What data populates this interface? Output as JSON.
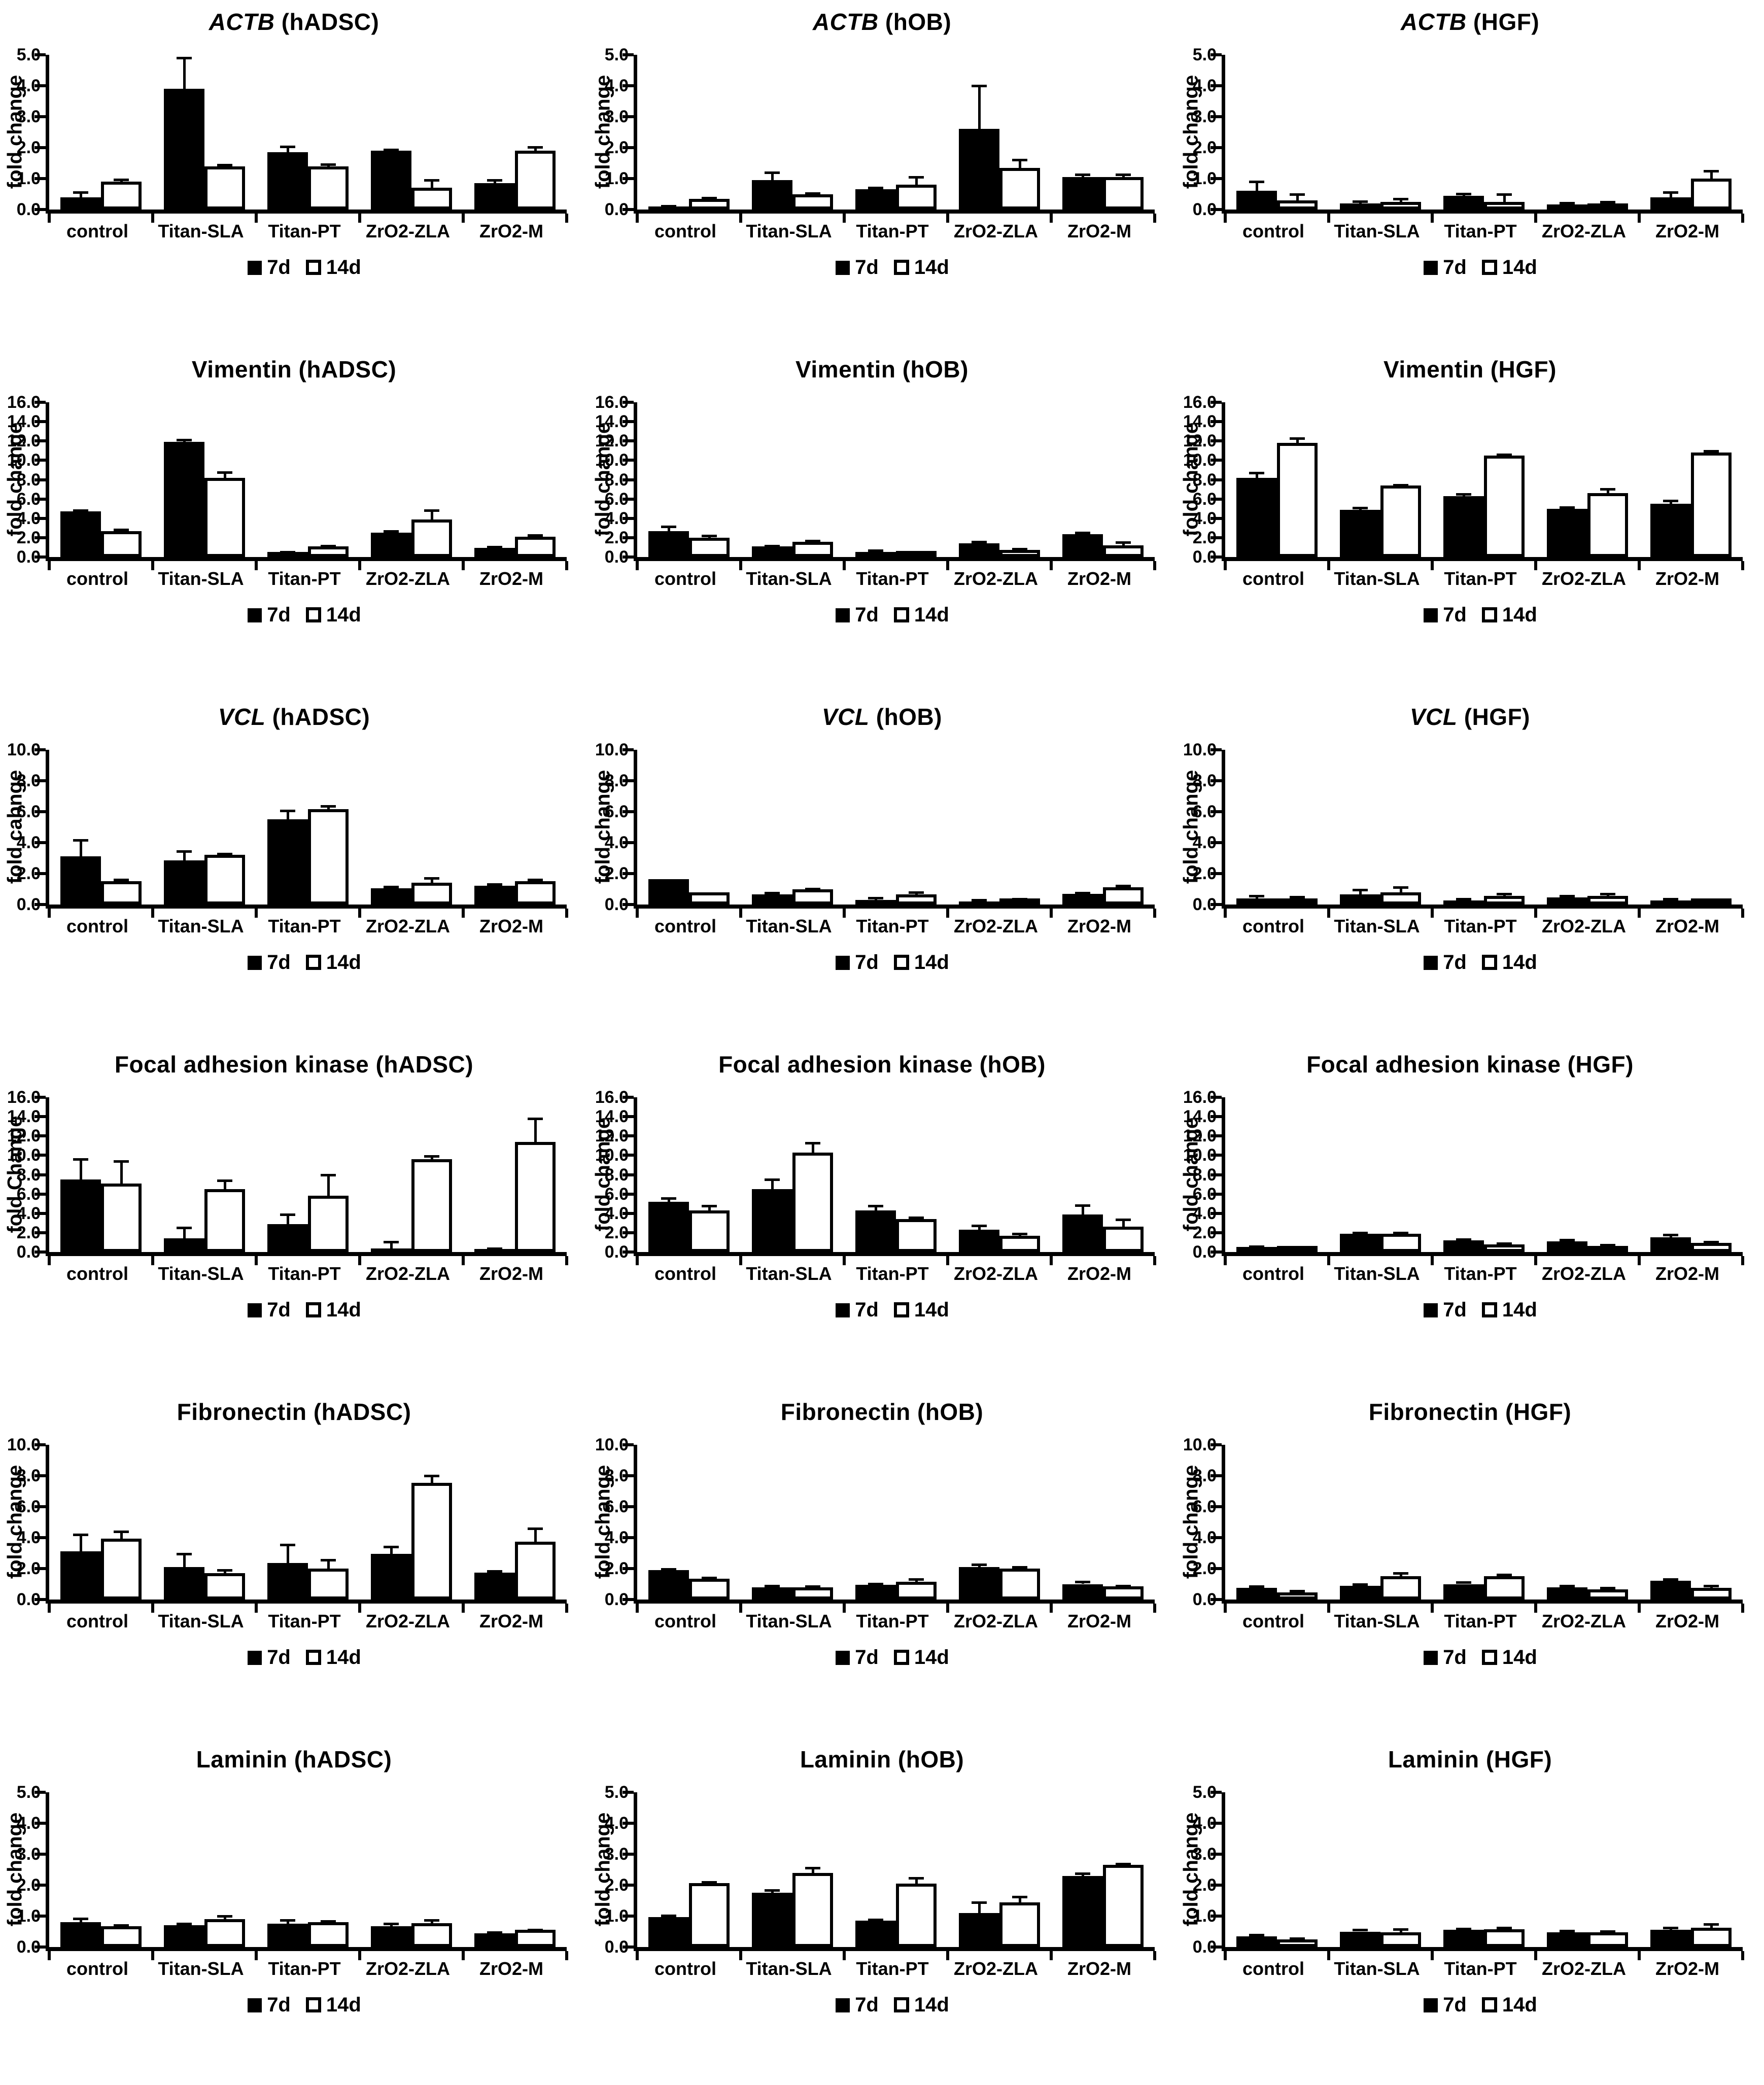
{
  "figure": {
    "background_color": "#ffffff",
    "ink_color": "#000000",
    "legend_labels": [
      "7d",
      "14d"
    ]
  },
  "chart_data": [
    {
      "type": "bar",
      "title": "ACTB (hADSC)",
      "title_gene": "ACTB",
      "title_italic": true,
      "title_suffix": " (hADSC)",
      "ylabel": "fold change",
      "ylim": [
        0,
        5.0
      ],
      "ytick_step": 1.0,
      "grid": false,
      "legend_position": "bottom",
      "categories": [
        "control",
        "Titan-SLA",
        "Titan-PT",
        "ZrO2-ZLA",
        "ZrO2-M"
      ],
      "series": [
        {
          "name": "7d",
          "values": [
            0.4,
            3.9,
            1.85,
            1.9,
            0.85
          ],
          "errors": [
            0.15,
            1.0,
            0.18,
            0.03,
            0.1
          ]
        },
        {
          "name": "14d",
          "values": [
            0.9,
            1.4,
            1.4,
            0.7,
            1.9
          ],
          "errors": [
            0.06,
            0.05,
            0.06,
            0.25,
            0.12
          ]
        }
      ]
    },
    {
      "type": "bar",
      "title": "ACTB (hOB)",
      "title_gene": "ACTB",
      "title_italic": true,
      "title_suffix": " (hOB)",
      "ylabel": "fold change",
      "ylim": [
        0,
        5.0
      ],
      "ytick_step": 1.0,
      "grid": false,
      "legend_position": "bottom",
      "categories": [
        "control",
        "Titan-SLA",
        "Titan-PT",
        "ZrO2-ZLA",
        "ZrO2-M"
      ],
      "series": [
        {
          "name": "7d",
          "values": [
            0.1,
            0.95,
            0.65,
            2.6,
            1.05
          ],
          "errors": [
            0.02,
            0.25,
            0.05,
            1.4,
            0.08
          ]
        },
        {
          "name": "14d",
          "values": [
            0.35,
            0.5,
            0.8,
            1.35,
            1.05
          ],
          "errors": [
            0.02,
            0.03,
            0.25,
            0.25,
            0.08
          ]
        }
      ]
    },
    {
      "type": "bar",
      "title": "ACTB (HGF)",
      "title_gene": "ACTB",
      "title_italic": true,
      "title_suffix": " (HGF)",
      "ylabel": "fold change",
      "ylim": [
        0,
        5.0
      ],
      "ytick_step": 1.0,
      "grid": false,
      "legend_position": "bottom",
      "categories": [
        "control",
        "Titan-SLA",
        "Titan-PT",
        "ZrO2-ZLA",
        "ZrO2-M"
      ],
      "series": [
        {
          "name": "7d",
          "values": [
            0.6,
            0.2,
            0.45,
            0.17,
            0.4
          ],
          "errors": [
            0.3,
            0.06,
            0.06,
            0.05,
            0.15
          ]
        },
        {
          "name": "14d",
          "values": [
            0.3,
            0.25,
            0.25,
            0.2,
            1.0
          ],
          "errors": [
            0.2,
            0.1,
            0.25,
            0.04,
            0.25
          ]
        }
      ]
    },
    {
      "type": "bar",
      "title": "Vimentin (hADSC)",
      "title_gene": "Vimentin",
      "title_italic": false,
      "title_suffix": " (hADSC)",
      "ylabel": "fold change",
      "ylim": [
        0,
        16.0
      ],
      "ytick_step": 2.0,
      "grid": false,
      "legend_position": "bottom",
      "categories": [
        "control",
        "Titan-SLA",
        "Titan-PT",
        "ZrO2-ZLA",
        "ZrO2-M"
      ],
      "series": [
        {
          "name": "7d",
          "values": [
            4.7,
            11.9,
            0.5,
            2.5,
            0.95
          ],
          "errors": [
            0.15,
            0.2,
            0.05,
            0.2,
            0.1
          ]
        },
        {
          "name": "14d",
          "values": [
            2.7,
            8.2,
            1.1,
            3.9,
            2.1
          ],
          "errors": [
            0.15,
            0.55,
            0.05,
            0.95,
            0.15
          ]
        }
      ]
    },
    {
      "type": "bar",
      "title": "Vimentin (hOB)",
      "title_gene": "Vimentin",
      "title_italic": false,
      "title_suffix": " (hOB)",
      "ylabel": "fold change",
      "ylim": [
        0,
        16.0
      ],
      "ytick_step": 2.0,
      "grid": false,
      "legend_position": "bottom",
      "categories": [
        "control",
        "Titan-SLA",
        "Titan-PT",
        "ZrO2-ZLA",
        "ZrO2-M"
      ],
      "series": [
        {
          "name": "7d",
          "values": [
            2.7,
            1.1,
            0.55,
            1.4,
            2.35
          ],
          "errors": [
            0.45,
            0.05,
            0.15,
            0.2,
            0.15
          ]
        },
        {
          "name": "14d",
          "values": [
            2.0,
            1.6,
            0.4,
            0.75,
            1.2
          ],
          "errors": [
            0.2,
            0.1,
            0.05,
            0.1,
            0.3
          ]
        }
      ]
    },
    {
      "type": "bar",
      "title": "Vimentin (HGF)",
      "title_gene": "Vimentin",
      "title_italic": false,
      "title_suffix": " (HGF)",
      "ylabel": "fold change",
      "ylim": [
        0,
        16.0
      ],
      "ytick_step": 2.0,
      "grid": false,
      "legend_position": "bottom",
      "categories": [
        "control",
        "Titan-SLA",
        "Titan-PT",
        "ZrO2-ZLA",
        "ZrO2-M"
      ],
      "series": [
        {
          "name": "7d",
          "values": [
            8.2,
            4.9,
            6.3,
            5.0,
            5.5
          ],
          "errors": [
            0.5,
            0.2,
            0.2,
            0.15,
            0.3
          ]
        },
        {
          "name": "14d",
          "values": [
            11.8,
            7.4,
            10.5,
            6.6,
            10.8
          ],
          "errors": [
            0.45,
            0.05,
            0.1,
            0.45,
            0.15
          ]
        }
      ]
    },
    {
      "type": "bar",
      "title": "VCL (hADSC)",
      "title_gene": "VCL",
      "title_italic": true,
      "title_suffix": " (hADSC)",
      "ylabel": "fold cahnge",
      "ylim": [
        0,
        10.0
      ],
      "ytick_step": 2.0,
      "grid": false,
      "legend_position": "bottom",
      "categories": [
        "control",
        "Titan-SLA",
        "Titan-PT",
        "ZrO2-ZLA",
        "ZrO2-M"
      ],
      "series": [
        {
          "name": "7d",
          "values": [
            3.1,
            2.85,
            5.5,
            1.05,
            1.2
          ],
          "errors": [
            1.05,
            0.6,
            0.55,
            0.1,
            0.1
          ]
        },
        {
          "name": "14d",
          "values": [
            1.5,
            3.2,
            6.15,
            1.4,
            1.5
          ],
          "errors": [
            0.12,
            0.08,
            0.2,
            0.3,
            0.1
          ]
        }
      ]
    },
    {
      "type": "bar",
      "title": "VCL (hOB)",
      "title_gene": "VCL",
      "title_italic": true,
      "title_suffix": " (hOB)",
      "ylabel": "fold change",
      "ylim": [
        0,
        10.0
      ],
      "ytick_step": 2.0,
      "grid": false,
      "legend_position": "bottom",
      "categories": [
        "control",
        "Titan-SLA",
        "Titan-PT",
        "ZrO2-ZLA",
        "ZrO2-M"
      ],
      "series": [
        {
          "name": "7d",
          "values": [
            1.65,
            0.65,
            0.3,
            0.2,
            0.7
          ],
          "errors": [
            0,
            0.12,
            0.12,
            0.1,
            0.06
          ]
        },
        {
          "name": "14d",
          "values": [
            0.8,
            1.0,
            0.65,
            0.3,
            1.1
          ],
          "errors": [
            0,
            0.02,
            0.15,
            0.05,
            0.1
          ]
        }
      ]
    },
    {
      "type": "bar",
      "title": "VCL (HGF)",
      "title_gene": "VCL",
      "title_italic": true,
      "title_suffix": " (HGF)",
      "ylabel": "fold change",
      "ylim": [
        0,
        10.0
      ],
      "ytick_step": 2.0,
      "grid": false,
      "legend_position": "bottom",
      "categories": [
        "control",
        "Titan-SLA",
        "Titan-PT",
        "ZrO2-ZLA",
        "ZrO2-M"
      ],
      "series": [
        {
          "name": "7d",
          "values": [
            0.4,
            0.65,
            0.25,
            0.45,
            0.25
          ],
          "errors": [
            0.15,
            0.3,
            0.1,
            0.1,
            0.1
          ]
        },
        {
          "name": "14d",
          "values": [
            0.4,
            0.8,
            0.55,
            0.55,
            0.05
          ],
          "errors": [
            0.1,
            0.3,
            0.15,
            0.15,
            0.02
          ]
        }
      ]
    },
    {
      "type": "bar",
      "title": "Focal adhesion kinase (hADSC)",
      "title_gene": "Focal adhesion kinase",
      "title_italic": false,
      "title_suffix": " (hADSC)",
      "ylabel": "fold Change",
      "ylim": [
        0,
        16.0
      ],
      "ytick_step": 2.0,
      "grid": false,
      "legend_position": "bottom",
      "categories": [
        "control",
        "Titan-SLA",
        "Titan-PT",
        "ZrO2-ZLA",
        "ZrO2-M"
      ],
      "series": [
        {
          "name": "7d",
          "values": [
            7.5,
            1.4,
            2.9,
            0.35,
            0.3
          ],
          "errors": [
            2.1,
            1.1,
            1.0,
            0.7,
            0.05
          ]
        },
        {
          "name": "14d",
          "values": [
            7.1,
            6.5,
            5.8,
            9.6,
            11.4
          ],
          "errors": [
            2.3,
            0.9,
            2.2,
            0.3,
            2.4
          ]
        }
      ]
    },
    {
      "type": "bar",
      "title": "Focal adhesion kinase (hOB)",
      "title_gene": "Focal adhesion kinase",
      "title_italic": false,
      "title_suffix": " (hOB)",
      "ylabel": "fold change",
      "ylim": [
        0,
        16.0
      ],
      "ytick_step": 2.0,
      "grid": false,
      "legend_position": "bottom",
      "categories": [
        "control",
        "Titan-SLA",
        "Titan-PT",
        "ZrO2-ZLA",
        "ZrO2-M"
      ],
      "series": [
        {
          "name": "7d",
          "values": [
            5.2,
            6.5,
            4.3,
            2.3,
            3.9
          ],
          "errors": [
            0.35,
            1.0,
            0.5,
            0.45,
            0.95
          ]
        },
        {
          "name": "14d",
          "values": [
            4.3,
            10.3,
            3.4,
            1.7,
            2.6
          ],
          "errors": [
            0.45,
            1.0,
            0.15,
            0.2,
            0.75
          ]
        }
      ]
    },
    {
      "type": "bar",
      "title": "Focal adhesion kinase (HGF)",
      "title_gene": "Focal adhesion kinase",
      "title_italic": false,
      "title_suffix": " (HGF)",
      "ylabel": "fold change",
      "ylim": [
        0,
        16.0
      ],
      "ytick_step": 2.0,
      "grid": false,
      "legend_position": "bottom",
      "categories": [
        "control",
        "Titan-SLA",
        "Titan-PT",
        "ZrO2-ZLA",
        "ZrO2-M"
      ],
      "series": [
        {
          "name": "7d",
          "values": [
            0.5,
            1.9,
            1.2,
            1.1,
            1.5
          ],
          "errors": [
            0.1,
            0.1,
            0.1,
            0.15,
            0.3
          ]
        },
        {
          "name": "14d",
          "values": [
            0.25,
            1.9,
            0.8,
            0.65,
            0.95
          ],
          "errors": [
            0.02,
            0.1,
            0.1,
            0.1,
            0.1
          ]
        }
      ]
    },
    {
      "type": "bar",
      "title": "Fibronectin (hADSC)",
      "title_gene": "Fibronectin",
      "title_italic": false,
      "title_suffix": " (hADSC)",
      "ylabel": "fold change",
      "ylim": [
        0,
        10.0
      ],
      "ytick_step": 2.0,
      "grid": false,
      "legend_position": "bottom",
      "categories": [
        "control",
        "Titan-SLA",
        "Titan-PT",
        "ZrO2-ZLA",
        "ZrO2-M"
      ],
      "series": [
        {
          "name": "7d",
          "values": [
            3.1,
            2.1,
            2.35,
            2.95,
            1.75
          ],
          "errors": [
            1.1,
            0.85,
            1.2,
            0.45,
            0.07
          ]
        },
        {
          "name": "14d",
          "values": [
            3.95,
            1.7,
            2.0,
            7.55,
            3.75
          ],
          "errors": [
            0.45,
            0.2,
            0.55,
            0.45,
            0.85
          ]
        }
      ]
    },
    {
      "type": "bar",
      "title": "Fibronectin (hOB)",
      "title_gene": "Fibronectin",
      "title_italic": false,
      "title_suffix": " (hOB)",
      "ylabel": "fold change",
      "ylim": [
        0,
        10.0
      ],
      "ytick_step": 2.0,
      "grid": false,
      "legend_position": "bottom",
      "categories": [
        "control",
        "Titan-SLA",
        "Titan-PT",
        "ZrO2-ZLA",
        "ZrO2-M"
      ],
      "series": [
        {
          "name": "7d",
          "values": [
            1.9,
            0.8,
            0.95,
            2.1,
            1.0
          ],
          "errors": [
            0.07,
            0.1,
            0.06,
            0.17,
            0.15
          ]
        },
        {
          "name": "14d",
          "values": [
            1.35,
            0.8,
            1.15,
            2.0,
            0.85
          ],
          "errors": [
            0.05,
            0.06,
            0.15,
            0.1,
            0.05
          ]
        }
      ]
    },
    {
      "type": "bar",
      "title": "Fibronectin (HGF)",
      "title_gene": "Fibronectin",
      "title_italic": false,
      "title_suffix": " (HGF)",
      "ylabel": "fold change",
      "ylim": [
        0,
        10.0
      ],
      "ytick_step": 2.0,
      "grid": false,
      "legend_position": "bottom",
      "categories": [
        "control",
        "Titan-SLA",
        "Titan-PT",
        "ZrO2-ZLA",
        "ZrO2-M"
      ],
      "series": [
        {
          "name": "7d",
          "values": [
            0.75,
            0.9,
            1.0,
            0.8,
            1.2
          ],
          "errors": [
            0.1,
            0.08,
            0.1,
            0.08,
            0.1
          ]
        },
        {
          "name": "14d",
          "values": [
            0.45,
            1.5,
            1.5,
            0.65,
            0.75
          ],
          "errors": [
            0.1,
            0.2,
            0.1,
            0.1,
            0.15
          ]
        }
      ]
    },
    {
      "type": "bar",
      "title": "Laminin (hADSC)",
      "title_gene": "Laminin",
      "title_italic": false,
      "title_suffix": " (hADSC)",
      "ylabel": "fold change",
      "ylim": [
        0,
        5.0
      ],
      "ytick_step": 1.0,
      "grid": false,
      "legend_position": "bottom",
      "categories": [
        "control",
        "Titan-SLA",
        "Titan-PT",
        "ZrO2-ZLA",
        "ZrO2-M"
      ],
      "series": [
        {
          "name": "7d",
          "values": [
            0.8,
            0.7,
            0.75,
            0.67,
            0.45
          ],
          "errors": [
            0.12,
            0.06,
            0.12,
            0.08,
            0.03
          ]
        },
        {
          "name": "14d",
          "values": [
            0.67,
            0.9,
            0.8,
            0.77,
            0.55
          ],
          "errors": [
            0.04,
            0.1,
            0.04,
            0.1,
            0.01
          ]
        }
      ]
    },
    {
      "type": "bar",
      "title": "Laminin (hOB)",
      "title_gene": "Laminin",
      "title_italic": false,
      "title_suffix": " (hOB)",
      "ylabel": "fold change",
      "ylim": [
        0,
        5.0
      ],
      "ytick_step": 1.0,
      "grid": false,
      "legend_position": "bottom",
      "categories": [
        "control",
        "Titan-SLA",
        "Titan-PT",
        "ZrO2-ZLA",
        "ZrO2-M"
      ],
      "series": [
        {
          "name": "7d",
          "values": [
            0.97,
            1.75,
            0.85,
            1.1,
            2.3
          ],
          "errors": [
            0.05,
            0.08,
            0.04,
            0.35,
            0.08
          ]
        },
        {
          "name": "14d",
          "values": [
            2.07,
            2.4,
            2.05,
            1.45,
            2.65
          ],
          "errors": [
            0.03,
            0.15,
            0.18,
            0.18,
            0.04
          ]
        }
      ]
    },
    {
      "type": "bar",
      "title": "Laminin (HGF)",
      "title_gene": "Laminin",
      "title_italic": false,
      "title_suffix": " (HGF)",
      "ylabel": "fold change",
      "ylim": [
        0,
        5.0
      ],
      "ytick_step": 1.0,
      "grid": false,
      "legend_position": "bottom",
      "categories": [
        "control",
        "Titan-SLA",
        "Titan-PT",
        "ZrO2-ZLA",
        "ZrO2-M"
      ],
      "series": [
        {
          "name": "7d",
          "values": [
            0.35,
            0.5,
            0.55,
            0.47,
            0.55
          ],
          "errors": [
            0.05,
            0.05,
            0.04,
            0.05,
            0.08
          ]
        },
        {
          "name": "14d",
          "values": [
            0.25,
            0.47,
            0.58,
            0.47,
            0.63
          ],
          "errors": [
            0.03,
            0.1,
            0.04,
            0.04,
            0.1
          ]
        }
      ]
    }
  ]
}
